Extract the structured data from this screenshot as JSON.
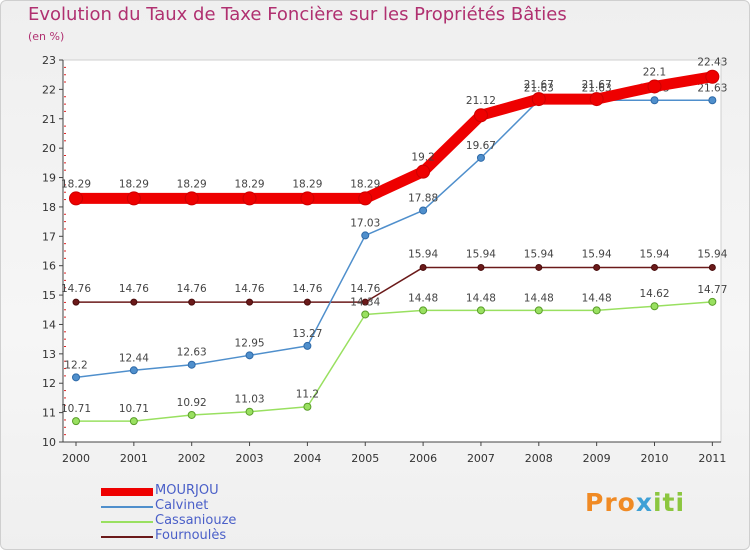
{
  "title": "Evolution du Taux de Taxe Foncière sur les Propriétés Bâties",
  "unit": "(en %)",
  "logo": {
    "part1": "Pro",
    "part2": "x",
    "part3": "iti"
  },
  "chart_data": {
    "type": "line",
    "title": "Evolution du Taux de Taxe Foncière sur les Propriétés Bâties",
    "ylabel": "(en %)",
    "xlabel": "",
    "ylim": [
      10,
      23
    ],
    "grid": false,
    "legend_position": "bottom-left",
    "categories": [
      "2000",
      "2001",
      "2002",
      "2003",
      "2004",
      "2005",
      "2006",
      "2007",
      "2008",
      "2009",
      "2010",
      "2011"
    ],
    "yticks": [
      "10",
      "11",
      "12",
      "13",
      "14",
      "15",
      "16",
      "17",
      "18",
      "19",
      "20",
      "21",
      "22",
      "23"
    ],
    "series": [
      {
        "name": "MOURJOU",
        "color": "#ee0000",
        "values": [
          18.29,
          18.29,
          18.29,
          18.29,
          18.29,
          18.29,
          19.2,
          21.12,
          21.67,
          21.67,
          22.1,
          22.43
        ],
        "labels": [
          "18.29",
          "18.29",
          "18.29",
          "18.29",
          "18.29",
          "18.29",
          "19.2",
          "21.12",
          "21.67",
          "21.67",
          "22.1",
          "22.43"
        ]
      },
      {
        "name": "Calvinet",
        "color": "#4f8fcc",
        "values": [
          12.2,
          12.44,
          12.63,
          12.95,
          13.27,
          17.03,
          17.88,
          19.67,
          21.63,
          21.63,
          21.63,
          21.63
        ],
        "labels": [
          "12.2",
          "12.44",
          "12.63",
          "12.95",
          "13.27",
          "17.03",
          "17.88",
          "19.67",
          "21.63",
          "21.63",
          "21.63",
          "21.63"
        ]
      },
      {
        "name": "Cassaniouze",
        "color": "#99e060",
        "values": [
          10.71,
          10.71,
          10.92,
          11.03,
          11.2,
          14.34,
          14.48,
          14.48,
          14.48,
          14.48,
          14.62,
          14.77
        ],
        "labels": [
          "10.71",
          "10.71",
          "10.92",
          "11.03",
          "11.2",
          "14.34",
          "14.48",
          "14.48",
          "14.48",
          "14.48",
          "14.62",
          "14.77"
        ]
      },
      {
        "name": "Fournoulès",
        "color": "#6b1a1a",
        "values": [
          14.76,
          14.76,
          14.76,
          14.76,
          14.76,
          14.76,
          15.94,
          15.94,
          15.94,
          15.94,
          15.94,
          15.94
        ],
        "labels": [
          "14.76",
          "14.76",
          "14.76",
          "14.76",
          "14.76",
          "14.76",
          "15.94",
          "15.94",
          "15.94",
          "15.94",
          "15.94",
          "15.94"
        ]
      }
    ]
  }
}
